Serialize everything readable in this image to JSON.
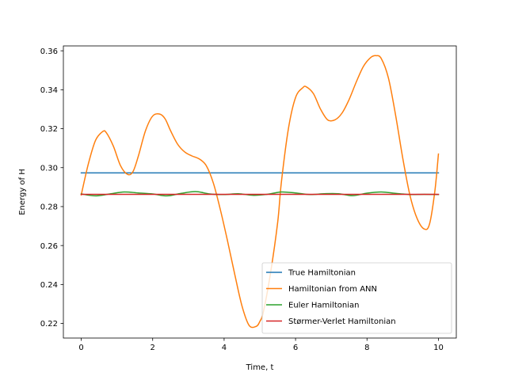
{
  "chart_data": {
    "type": "line",
    "xlabel": "Time, t",
    "ylabel": "Energy of H",
    "xlim": [
      -0.5,
      10.5
    ],
    "ylim": [
      0.2125,
      0.3625
    ],
    "xticks": [
      0,
      2,
      4,
      6,
      8,
      10
    ],
    "xtick_labels": [
      "0",
      "2",
      "4",
      "6",
      "8",
      "10"
    ],
    "yticks": [
      0.22,
      0.24,
      0.26,
      0.28,
      0.3,
      0.32,
      0.34,
      0.36
    ],
    "ytick_labels": [
      "0.22",
      "0.24",
      "0.26",
      "0.28",
      "0.30",
      "0.32",
      "0.34",
      "0.36"
    ],
    "grid": false,
    "legend_position": "lower-right",
    "series": [
      {
        "name": "True Hamiltonian",
        "color": "#1f77b4",
        "x": [
          0,
          10
        ],
        "y": [
          0.2973,
          0.2973
        ]
      },
      {
        "name": "Hamiltonian from ANN",
        "color": "#ff7f0e",
        "x": [
          0,
          0.2,
          0.4,
          0.6,
          0.7,
          0.9,
          1.1,
          1.3,
          1.45,
          1.6,
          1.8,
          2.0,
          2.2,
          2.35,
          2.5,
          2.7,
          2.9,
          3.1,
          3.3,
          3.5,
          3.7,
          3.9,
          4.1,
          4.3,
          4.5,
          4.7,
          4.9,
          5.0,
          5.1,
          5.3,
          5.5,
          5.6,
          5.8,
          6.0,
          6.2,
          6.3,
          6.5,
          6.7,
          6.9,
          7.1,
          7.3,
          7.5,
          7.7,
          7.9,
          8.1,
          8.25,
          8.4,
          8.6,
          8.8,
          9.0,
          9.2,
          9.4,
          9.6,
          9.75,
          9.9,
          10.0
        ],
        "y": [
          0.286,
          0.302,
          0.314,
          0.3185,
          0.318,
          0.311,
          0.301,
          0.2965,
          0.298,
          0.306,
          0.319,
          0.3265,
          0.3275,
          0.325,
          0.319,
          0.312,
          0.308,
          0.306,
          0.3045,
          0.301,
          0.292,
          0.278,
          0.262,
          0.245,
          0.229,
          0.219,
          0.2185,
          0.221,
          0.226,
          0.246,
          0.272,
          0.292,
          0.32,
          0.336,
          0.341,
          0.3415,
          0.338,
          0.33,
          0.3245,
          0.3245,
          0.328,
          0.335,
          0.344,
          0.352,
          0.3565,
          0.3575,
          0.356,
          0.346,
          0.327,
          0.305,
          0.286,
          0.274,
          0.2685,
          0.271,
          0.288,
          0.307
        ]
      },
      {
        "name": "Euler Hamiltonian",
        "color": "#2ca02c",
        "x": [
          0,
          0.4,
          0.8,
          1.2,
          1.6,
          2.0,
          2.4,
          2.8,
          3.2,
          3.6,
          4.0,
          4.4,
          4.8,
          5.2,
          5.6,
          6.0,
          6.4,
          6.8,
          7.2,
          7.6,
          8.0,
          8.4,
          8.8,
          9.2,
          9.6,
          10.0
        ],
        "y": [
          0.2865,
          0.2855,
          0.2865,
          0.2875,
          0.287,
          0.2865,
          0.2855,
          0.2868,
          0.2877,
          0.2865,
          0.2862,
          0.2866,
          0.2858,
          0.2863,
          0.2875,
          0.287,
          0.2862,
          0.2866,
          0.2866,
          0.2856,
          0.2869,
          0.2875,
          0.2868,
          0.2862,
          0.2863,
          0.2862
        ]
      },
      {
        "name": "Størmer-Verlet Hamiltonian",
        "color": "#d62728",
        "x": [
          0,
          10
        ],
        "y": [
          0.2863,
          0.2863
        ]
      }
    ]
  }
}
